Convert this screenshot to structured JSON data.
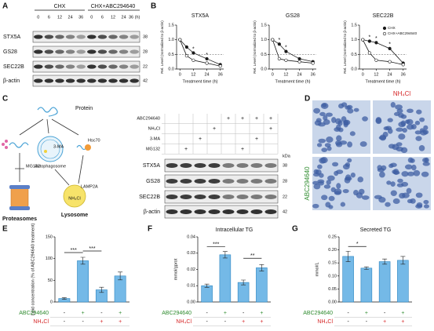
{
  "panel_labels": [
    "A",
    "B",
    "C",
    "D",
    "E",
    "F",
    "G"
  ],
  "blot_a": {
    "groups": [
      "CHX",
      "CHX+ABC294640"
    ],
    "times": [
      "0",
      "6",
      "12",
      "24",
      "36",
      "0",
      "6",
      "12",
      "24",
      "36 (h)"
    ],
    "proteins": [
      "STX5A",
      "GS28",
      "SEC22B",
      "β-actin"
    ],
    "kda": [
      38,
      28,
      22,
      42
    ]
  },
  "scheme": {
    "protein": "Protein",
    "mg132": "MG132",
    "proteasomes": "Proteasomes",
    "ma": "3-MA",
    "autophagosome": "Autophagosome",
    "hsc70": "Hsc70",
    "lamp2a": "LAMP2A",
    "nh4cl": "NH₄Cl",
    "lysosome": "Lysosome"
  },
  "blot_c": {
    "treatments": [
      {
        "name": "ABC294640",
        "signs": [
          null,
          null,
          null,
          null,
          "+",
          "+",
          "+",
          "+"
        ]
      },
      {
        "name": "NH₄Cl",
        "signs": [
          null,
          null,
          null,
          "+",
          null,
          null,
          null,
          "+"
        ]
      },
      {
        "name": "3-MA",
        "signs": [
          null,
          null,
          "+",
          null,
          null,
          null,
          "+",
          null
        ]
      },
      {
        "name": "MG132",
        "signs": [
          null,
          "+",
          null,
          null,
          null,
          "+",
          null,
          null
        ]
      }
    ],
    "kda_label": "kDa",
    "proteins": [
      "STX5A",
      "GS28",
      "SEC22B",
      "β-actin"
    ],
    "kda": [
      38,
      28,
      22,
      42
    ]
  },
  "staining": {
    "col_label": "NH₄Cl",
    "row_label": "ABC294640"
  },
  "chart_data": [
    {
      "type": "line",
      "title": "STX5A",
      "ylabel": "Rel. Level (normalized to β-actin)",
      "xlabel": "Treatment time (h)",
      "x": [
        0,
        6,
        12,
        24,
        36
      ],
      "xlim": [
        -3,
        39
      ],
      "xticks": [
        0,
        12,
        24,
        36
      ],
      "ylim": [
        0,
        1.5
      ],
      "yticks": [
        {
          "value": 0,
          "label": "0.0"
        },
        0.5,
        {
          "value": 1,
          "label": "1.0"
        },
        1.5
      ],
      "reference_line": 0.5,
      "series": [
        {
          "color": "#1a1a1a",
          "marker_fill": "#1a1a1a",
          "values": [
            1.0,
            0.75,
            0.55,
            0.35,
            0.15
          ]
        },
        {
          "color": "#1a1a1a",
          "marker_fill": "#ffffff",
          "values": [
            1.0,
            0.45,
            0.3,
            0.2,
            0.1
          ]
        }
      ],
      "annotations": [
        {
          "x": 12,
          "text": "*"
        },
        {
          "x": 24,
          "text": "*"
        }
      ]
    },
    {
      "type": "line",
      "title": "GS28",
      "ylabel": "Rel. Level (normalized to β-actin)",
      "xlabel": "Treatment time (h)",
      "x": [
        0,
        6,
        12,
        24,
        36
      ],
      "xlim": [
        -3,
        39
      ],
      "xticks": [
        0,
        12,
        24,
        36
      ],
      "ylim": [
        0,
        1.5
      ],
      "yticks": [
        {
          "value": 0,
          "label": "0.0"
        },
        0.5,
        {
          "value": 1,
          "label": "1.0"
        },
        1.5
      ],
      "reference_line": 0.5,
      "series": [
        {
          "color": "#1a1a1a",
          "marker_fill": "#1a1a1a",
          "values": [
            1.0,
            0.85,
            0.6,
            0.35,
            0.25
          ]
        },
        {
          "color": "#1a1a1a",
          "marker_fill": "#ffffff",
          "values": [
            1.0,
            0.35,
            0.3,
            0.25,
            0.2
          ]
        }
      ],
      "annotations": [
        {
          "x": 6,
          "text": "*"
        },
        {
          "x": 12,
          "text": "*"
        }
      ]
    },
    {
      "type": "line",
      "title": "SEC22B",
      "ylabel": "Rel. Level (normalized to β-actin)",
      "xlabel": "Treatment time (h)",
      "x": [
        0,
        6,
        12,
        24,
        36
      ],
      "xlim": [
        -3,
        39
      ],
      "xticks": [
        0,
        12,
        24,
        36
      ],
      "ylim": [
        0,
        1.5
      ],
      "yticks": [
        {
          "value": 0,
          "label": "0.0"
        },
        0.5,
        {
          "value": 1,
          "label": "1.0"
        },
        1.5
      ],
      "reference_line": 0.5,
      "legend": "upper right",
      "series": [
        {
          "name": "CHX",
          "color": "#1a1a1a",
          "marker_fill": "#1a1a1a",
          "values": [
            1.0,
            0.95,
            0.9,
            0.7,
            0.2
          ]
        },
        {
          "name": "CHX+ABC294640",
          "color": "#1a1a1a",
          "marker_fill": "#ffffff",
          "values": [
            1.0,
            0.55,
            0.3,
            0.25,
            0.15
          ]
        }
      ],
      "annotations": [
        {
          "x": 6,
          "text": "*"
        },
        {
          "x": 12,
          "text": "*"
        },
        {
          "x": 24,
          "text": "*"
        }
      ]
    },
    {
      "type": "bar",
      "ylabel": "Lipid concentration (% of ABC294640 treatment)",
      "values": [
        8,
        95,
        28,
        60
      ],
      "errors": [
        2,
        8,
        6,
        9
      ],
      "color": "#74b9e7",
      "edge": "#2e86c1",
      "ylim": [
        0,
        150
      ],
      "yticks": [
        0,
        50,
        100,
        150
      ],
      "treatments": [
        {
          "name": "ABC294640",
          "color": "#2e8b2e",
          "signs": [
            "-",
            "+",
            "-",
            "+"
          ]
        },
        {
          "name": "NH₄Cl",
          "color": "#d62728",
          "signs": [
            "-",
            "-",
            "+",
            "+"
          ]
        }
      ],
      "significance": [
        {
          "from": 0,
          "to": 1,
          "label": "***"
        },
        {
          "from": 1,
          "to": 2,
          "label": "***"
        }
      ]
    },
    {
      "type": "bar",
      "title": "Intracellular TG",
      "ylabel": "mmol/gprot",
      "values": [
        0.01,
        0.029,
        0.012,
        0.021
      ],
      "errors": [
        0.001,
        0.002,
        0.0015,
        0.002
      ],
      "color": "#74b9e7",
      "edge": "#2e86c1",
      "ylim": [
        0,
        0.04
      ],
      "yticks": [
        {
          "value": 0,
          "label": "0.00"
        },
        {
          "value": 0.01,
          "label": "0.01"
        },
        {
          "value": 0.02,
          "label": "0.02"
        },
        {
          "value": 0.03,
          "label": "0.03"
        },
        {
          "value": 0.04,
          "label": "0.04"
        }
      ],
      "treatments": [
        {
          "name": "ABC294640",
          "color": "#2e8b2e",
          "signs": [
            "-",
            "+",
            "-",
            "+"
          ]
        },
        {
          "name": "NH₄Cl",
          "color": "#d62728",
          "signs": [
            "-",
            "-",
            "+",
            "+"
          ]
        }
      ],
      "significance": [
        {
          "from": 0,
          "to": 1,
          "label": "***"
        },
        {
          "from": 2,
          "to": 3,
          "label": "**"
        }
      ]
    },
    {
      "type": "bar",
      "title": "Secreted TG",
      "ylabel": "mmol/L",
      "values": [
        0.175,
        0.13,
        0.155,
        0.16
      ],
      "errors": [
        0.02,
        0.005,
        0.01,
        0.015
      ],
      "color": "#74b9e7",
      "edge": "#2e86c1",
      "ylim": [
        0,
        0.25
      ],
      "yticks": [
        {
          "value": 0,
          "label": "0.00"
        },
        {
          "value": 0.05,
          "label": "0.05"
        },
        {
          "value": 0.1,
          "label": "0.10"
        },
        {
          "value": 0.15,
          "label": "0.15"
        },
        {
          "value": 0.2,
          "label": "0.20"
        },
        {
          "value": 0.25,
          "label": "0.25"
        }
      ],
      "treatments": [
        {
          "name": "ABC294640",
          "color": "#2e8b2e",
          "signs": [
            "-",
            "+",
            "-",
            "+"
          ]
        },
        {
          "name": "NH₄Cl",
          "color": "#d62728",
          "signs": [
            "-",
            "-",
            "+",
            "+"
          ]
        }
      ],
      "significance": [
        {
          "from": 0,
          "to": 1,
          "label": "*"
        }
      ]
    }
  ]
}
